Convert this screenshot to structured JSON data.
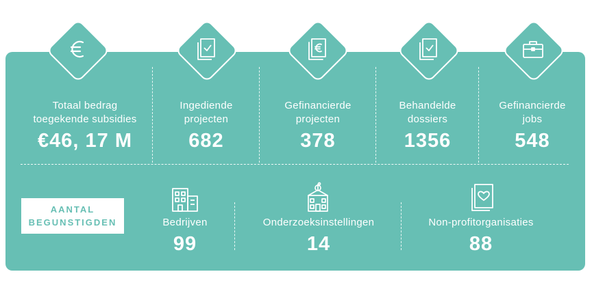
{
  "top_stats": [
    {
      "label_line1": "Totaal bedrag",
      "label_line2": "toegekende subsidies",
      "value": "€46, 17 M",
      "icon": "euro-icon"
    },
    {
      "label_line1": "Ingediende",
      "label_line2": "projecten",
      "value": "682",
      "icon": "document-check-icon"
    },
    {
      "label_line1": "Gefinancierde",
      "label_line2": "projecten",
      "value": "378",
      "icon": "document-euro-icon"
    },
    {
      "label_line1": "Behandelde",
      "label_line2": "dossiers",
      "value": "1356",
      "icon": "documents-check-icon"
    },
    {
      "label_line1": "Gefinancierde",
      "label_line2": "jobs",
      "value": "548",
      "icon": "briefcase-icon"
    }
  ],
  "beneficiaries": {
    "badge_line1": "AANTAL",
    "badge_line2": "BEGUNSTIGDEN",
    "items": [
      {
        "label": "Bedrijven",
        "value": "99",
        "icon": "building-icon"
      },
      {
        "label": "Onderzoeksinstellingen",
        "value": "14",
        "icon": "research-institution-icon"
      },
      {
        "label": "Non-profitorganisaties",
        "value": "88",
        "icon": "heart-document-icon"
      }
    ]
  },
  "colors": {
    "panel": "#67bfb4",
    "text": "#ffffff"
  }
}
